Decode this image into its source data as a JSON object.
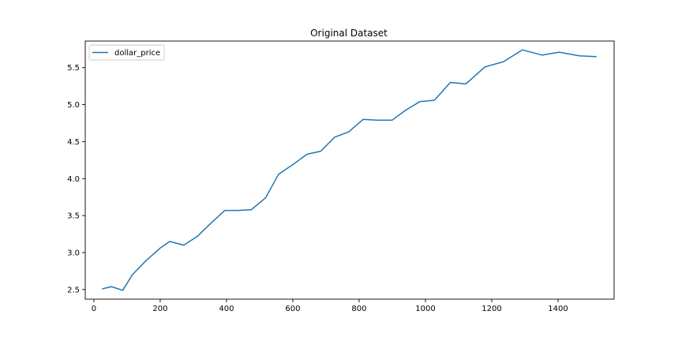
{
  "chart_data": {
    "type": "line",
    "title": "Original Dataset",
    "xlabel": "",
    "ylabel": "",
    "xlim": [
      -26,
      1569
    ],
    "ylim": [
      2.37,
      5.86
    ],
    "xticks": [
      0,
      200,
      400,
      600,
      800,
      1000,
      1200,
      1400
    ],
    "yticks": [
      2.5,
      3.0,
      3.5,
      4.0,
      4.5,
      5.0,
      5.5
    ],
    "xtick_labels": [
      "0",
      "200",
      "400",
      "600",
      "800",
      "1000",
      "1200",
      "1400"
    ],
    "ytick_labels": [
      "2.5",
      "3.0",
      "3.5",
      "4.0",
      "4.5",
      "5.0",
      "5.5"
    ],
    "grid": false,
    "legend_position": "upper-left",
    "series": [
      {
        "name": "dollar_price",
        "color": "#1f77b4",
        "x": [
          26,
          53,
          87,
          116,
          157,
          200,
          229,
          271,
          312,
          356,
          395,
          435,
          475,
          518,
          557,
          600,
          643,
          684,
          726,
          768,
          812,
          856,
          899,
          942,
          983,
          1027,
          1075,
          1122,
          1179,
          1235,
          1292,
          1352,
          1403,
          1465,
          1515
        ],
        "y": [
          2.51,
          2.54,
          2.49,
          2.7,
          2.89,
          3.06,
          3.15,
          3.1,
          3.22,
          3.41,
          3.57,
          3.57,
          3.58,
          3.74,
          4.06,
          4.19,
          4.33,
          4.37,
          4.56,
          4.63,
          4.8,
          4.79,
          4.79,
          4.93,
          5.04,
          5.06,
          5.3,
          5.28,
          5.51,
          5.58,
          5.74,
          5.67,
          5.71,
          5.66,
          5.65
        ]
      }
    ]
  }
}
